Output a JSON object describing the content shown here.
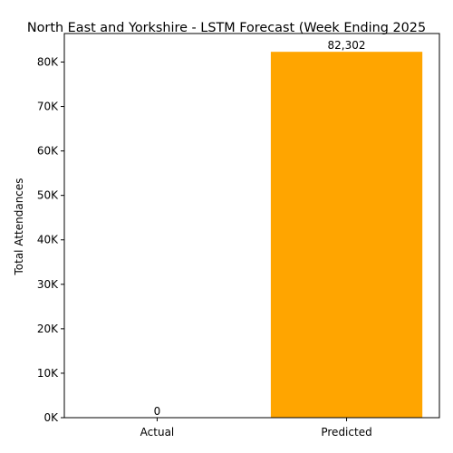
{
  "chart_data": {
    "type": "bar",
    "title": "North East and Yorkshire - LSTM Forecast (Week Ending 2025",
    "xlabel": "",
    "ylabel": "Total Attendances",
    "categories": [
      "Actual",
      "Predicted"
    ],
    "values": [
      0,
      82302
    ],
    "data_labels": [
      "0",
      "82,302"
    ],
    "bar_color": "#FFA500",
    "ylim": [
      0,
      86416
    ],
    "yticks": [
      0,
      10000,
      20000,
      30000,
      40000,
      50000,
      60000,
      70000,
      80000
    ],
    "ytick_labels": [
      "0K",
      "10K",
      "20K",
      "30K",
      "40K",
      "50K",
      "60K",
      "70K",
      "80K"
    ],
    "grid": false,
    "legend": "none"
  }
}
